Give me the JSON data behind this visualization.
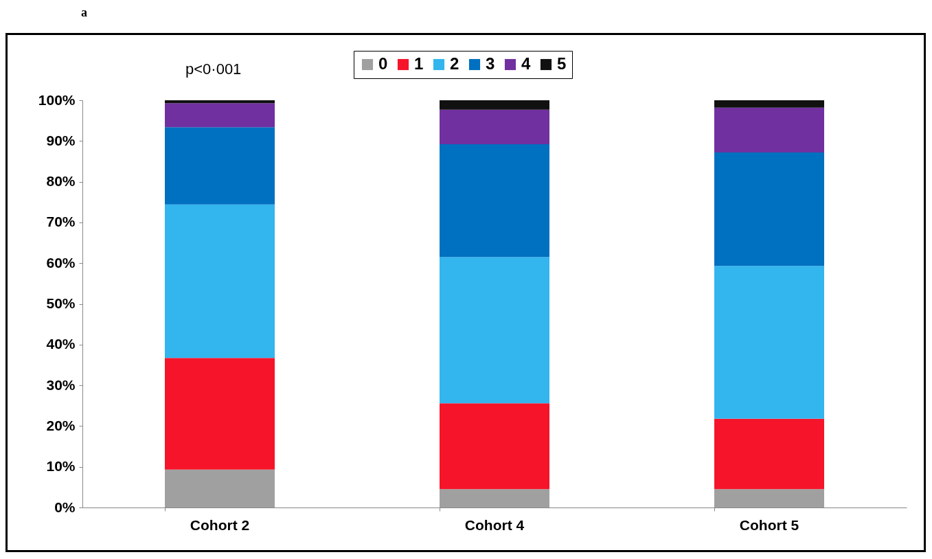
{
  "chart_data": {
    "type": "bar",
    "stacked": true,
    "categories": [
      "Cohort 2",
      "Cohort 4",
      "Cohort 5"
    ],
    "series": [
      {
        "name": "0",
        "color": "#a0a0a0",
        "values": [
          9.3,
          4.5,
          4.5
        ]
      },
      {
        "name": "1",
        "color": "#f5142a",
        "values": [
          27.4,
          21.1,
          17.3
        ]
      },
      {
        "name": "2",
        "color": "#33b5ee",
        "values": [
          37.7,
          35.9,
          37.5
        ]
      },
      {
        "name": "3",
        "color": "#0070c0",
        "values": [
          19.0,
          27.7,
          27.9
        ]
      },
      {
        "name": "4",
        "color": "#7030a0",
        "values": [
          5.9,
          8.5,
          11.0
        ]
      },
      {
        "name": "5",
        "color": "#111111",
        "values": [
          0.7,
          2.3,
          1.8
        ]
      }
    ],
    "ylim": [
      0,
      100
    ],
    "yticks": [
      {
        "value": 0,
        "label": "0%"
      },
      {
        "value": 10,
        "label": "10%"
      },
      {
        "value": 20,
        "label": "20%"
      },
      {
        "value": 30,
        "label": "30%"
      },
      {
        "value": 40,
        "label": "40%"
      },
      {
        "value": 50,
        "label": "50%"
      },
      {
        "value": 60,
        "label": "60%"
      },
      {
        "value": 70,
        "label": "70%"
      },
      {
        "value": 80,
        "label": "80%"
      },
      {
        "value": 90,
        "label": "90%"
      },
      {
        "value": 100,
        "label": "100%"
      }
    ],
    "grid": false,
    "legend": "top",
    "annotations": [
      "a",
      "p<0·001"
    ]
  }
}
